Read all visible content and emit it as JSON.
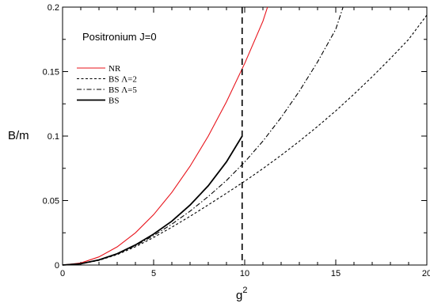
{
  "chart_data": {
    "type": "line",
    "title": "",
    "annotation": "Positronium J=0",
    "xlabel": "g",
    "xlabel_superscript": "2",
    "ylabel": "B/m",
    "xlim": [
      0,
      20
    ],
    "ylim": [
      0,
      0.2
    ],
    "x_ticks": [
      0,
      5,
      10,
      15,
      20
    ],
    "x_tick_labels": [
      "0",
      "5",
      "10",
      "15",
      "20"
    ],
    "y_ticks": [
      0,
      0.05,
      0.1,
      0.15,
      0.2
    ],
    "y_tick_labels": [
      "0",
      "0.05",
      "0.1",
      "0.15",
      "0.2"
    ],
    "grid": false,
    "legend_position": "upper-left",
    "vertical_line": {
      "x": 9.86,
      "style": "dashed",
      "color": "#000000"
    },
    "series": [
      {
        "name": "NR",
        "color": "#e8131b",
        "dash": "solid",
        "x": [
          0,
          1,
          2,
          3,
          4,
          5,
          6,
          7,
          8,
          9,
          10,
          11,
          11.25
        ],
        "y": [
          0,
          0.0016,
          0.0063,
          0.0141,
          0.025,
          0.0391,
          0.0563,
          0.0766,
          0.1,
          0.1266,
          0.1563,
          0.1891,
          0.2
        ]
      },
      {
        "name": "BS Λ=2",
        "color": "#000000",
        "dash": "dashed",
        "x": [
          0,
          1,
          2,
          3,
          4,
          5,
          6,
          7,
          8,
          9,
          10,
          11,
          12,
          13,
          14,
          15,
          16,
          17,
          18,
          19,
          20
        ],
        "y": [
          0,
          0.0009,
          0.0036,
          0.0081,
          0.0142,
          0.0214,
          0.0293,
          0.0378,
          0.0466,
          0.0557,
          0.065,
          0.0748,
          0.0851,
          0.096,
          0.1075,
          0.1196,
          0.1325,
          0.146,
          0.1602,
          0.175,
          0.1938
        ]
      },
      {
        "name": "BS Λ=5",
        "color": "#000000",
        "dash": "dashdot",
        "x": [
          0,
          1,
          2,
          3,
          4,
          5,
          6,
          7,
          8,
          9,
          10,
          11,
          12,
          13,
          14,
          15,
          15.4
        ],
        "y": [
          0,
          0.001,
          0.0038,
          0.0085,
          0.015,
          0.0228,
          0.0317,
          0.0418,
          0.0531,
          0.0656,
          0.0799,
          0.0961,
          0.1144,
          0.1348,
          0.1575,
          0.1828,
          0.2
        ]
      },
      {
        "name": "BS",
        "color": "#000000",
        "dash": "solid",
        "x": [
          0,
          1,
          2,
          3,
          4,
          5,
          6,
          7,
          8,
          9,
          9.86
        ],
        "y": [
          0,
          0.001,
          0.004,
          0.0088,
          0.0156,
          0.024,
          0.034,
          0.0465,
          0.0615,
          0.08,
          0.1
        ]
      }
    ]
  }
}
